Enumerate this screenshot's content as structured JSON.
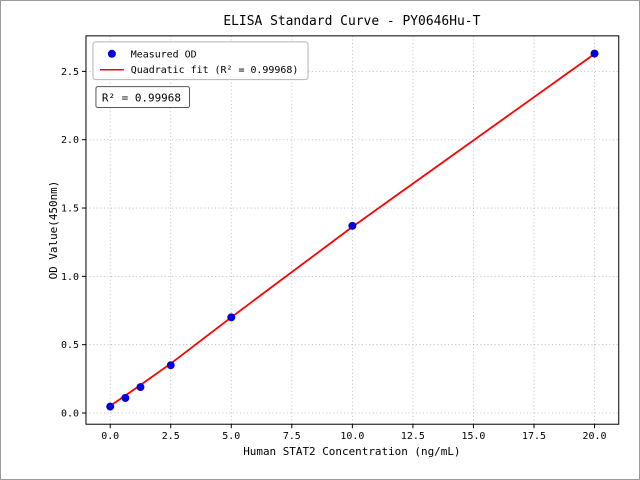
{
  "figure": {
    "background": "#ffffff"
  },
  "chart_data": {
    "type": "scatter",
    "title": "ELISA Standard Curve - PY0646Hu-T",
    "xlabel": "Human STAT2 Concentration (ng/mL)",
    "ylabel": "OD Value(450nm)",
    "xlim": [
      -1.0,
      21.0
    ],
    "ylim": [
      -0.082,
      2.76
    ],
    "xticks": [
      0.0,
      2.5,
      5.0,
      7.5,
      10.0,
      12.5,
      15.0,
      17.5,
      20.0
    ],
    "yticks": [
      0.0,
      0.5,
      1.0,
      1.5,
      2.0,
      2.5
    ],
    "grid": true,
    "grid_style": "dotted",
    "legend_position": "upper left",
    "series": [
      {
        "name": "Measured OD",
        "type": "scatter",
        "marker": "circle",
        "color": "#0000dd",
        "x": [
          0.0,
          0.625,
          1.25,
          2.5,
          5.0,
          10.0,
          20.0
        ],
        "y": [
          0.047,
          0.11,
          0.19,
          0.35,
          0.7,
          1.37,
          2.63
        ]
      },
      {
        "name": "Quadratic fit (R² = 0.99968)",
        "type": "line",
        "color": "#ff0000",
        "x": [
          0.0,
          0.625,
          1.25,
          2.5,
          5.0,
          10.0,
          20.0
        ],
        "y": [
          0.052,
          0.128,
          0.205,
          0.362,
          0.701,
          1.362,
          2.628
        ]
      }
    ],
    "annotation": {
      "text": "R² = 0.99968"
    }
  }
}
